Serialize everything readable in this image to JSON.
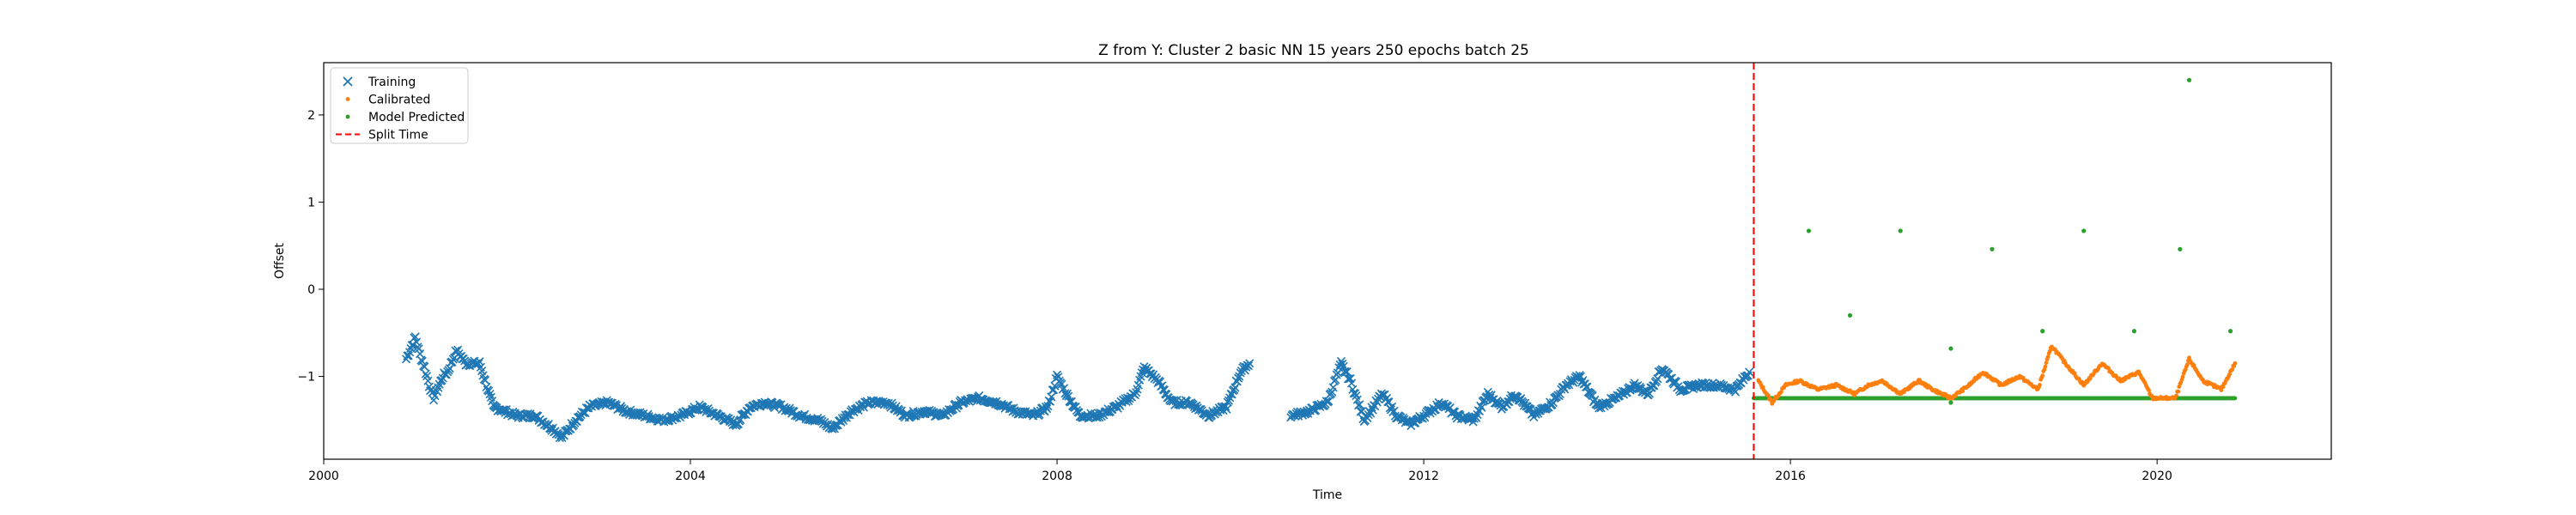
{
  "chart_data": {
    "type": "scatter",
    "title": "Z from Y: Cluster 2 basic NN 15 years 250 epochs batch 25",
    "xlabel": "Time",
    "ylabel": "Offset",
    "xlim": [
      2000.0,
      2021.9
    ],
    "ylim": [
      -1.95,
      2.6
    ],
    "x_ticks": [
      2000,
      2004,
      2008,
      2012,
      2016,
      2020
    ],
    "x_tick_labels": [
      "2000",
      "2004",
      "2008",
      "2012",
      "2016",
      "2020"
    ],
    "y_ticks": [
      -1,
      0,
      1,
      2
    ],
    "y_tick_labels": [
      "−1",
      "0",
      "1",
      "2"
    ],
    "grid": false,
    "legend_position": "top-left",
    "legend": [
      "Training",
      "Calibrated",
      "Model Predicted",
      "Split Time"
    ],
    "split_time": 2015.6,
    "series": [
      {
        "name": "Training",
        "marker": "x",
        "color": "#1f77b4",
        "points": [
          [
            2000.9,
            -0.8
          ],
          [
            2001.0,
            -0.55
          ],
          [
            2001.05,
            -0.75
          ],
          [
            2001.1,
            -0.9
          ],
          [
            2001.15,
            -1.1
          ],
          [
            2001.2,
            -1.25
          ],
          [
            2001.3,
            -1.0
          ],
          [
            2001.35,
            -0.95
          ],
          [
            2001.45,
            -0.7
          ],
          [
            2001.55,
            -0.85
          ],
          [
            2001.7,
            -0.85
          ],
          [
            2001.85,
            -1.35
          ],
          [
            2002.1,
            -1.45
          ],
          [
            2002.3,
            -1.45
          ],
          [
            2002.5,
            -1.6
          ],
          [
            2002.6,
            -1.7
          ],
          [
            2002.75,
            -1.5
          ],
          [
            2002.9,
            -1.35
          ],
          [
            2003.1,
            -1.3
          ],
          [
            2003.3,
            -1.4
          ],
          [
            2003.5,
            -1.45
          ],
          [
            2003.7,
            -1.5
          ],
          [
            2003.9,
            -1.45
          ],
          [
            2004.1,
            -1.35
          ],
          [
            2004.3,
            -1.45
          ],
          [
            2004.5,
            -1.55
          ],
          [
            2004.65,
            -1.35
          ],
          [
            2004.8,
            -1.3
          ],
          [
            2005.0,
            -1.35
          ],
          [
            2005.2,
            -1.45
          ],
          [
            2005.4,
            -1.5
          ],
          [
            2005.55,
            -1.6
          ],
          [
            2005.75,
            -1.4
          ],
          [
            2005.95,
            -1.3
          ],
          [
            2006.15,
            -1.3
          ],
          [
            2006.35,
            -1.45
          ],
          [
            2006.55,
            -1.4
          ],
          [
            2006.75,
            -1.45
          ],
          [
            2006.95,
            -1.3
          ],
          [
            2007.15,
            -1.25
          ],
          [
            2007.35,
            -1.3
          ],
          [
            2007.55,
            -1.4
          ],
          [
            2007.75,
            -1.45
          ],
          [
            2007.9,
            -1.35
          ],
          [
            2008.0,
            -1.0
          ],
          [
            2008.1,
            -1.2
          ],
          [
            2008.25,
            -1.45
          ],
          [
            2008.45,
            -1.45
          ],
          [
            2008.65,
            -1.35
          ],
          [
            2008.85,
            -1.2
          ],
          [
            2008.95,
            -0.9
          ],
          [
            2009.1,
            -1.05
          ],
          [
            2009.25,
            -1.3
          ],
          [
            2009.45,
            -1.3
          ],
          [
            2009.65,
            -1.45
          ],
          [
            2009.85,
            -1.35
          ],
          [
            2010.0,
            -0.95
          ],
          [
            2010.1,
            -0.85
          ],
          [
            2010.55,
            -1.45
          ],
          [
            2010.75,
            -1.4
          ],
          [
            2010.95,
            -1.3
          ],
          [
            2011.1,
            -0.85
          ],
          [
            2011.2,
            -1.05
          ],
          [
            2011.35,
            -1.5
          ],
          [
            2011.55,
            -1.2
          ],
          [
            2011.7,
            -1.45
          ],
          [
            2011.85,
            -1.55
          ],
          [
            2012.0,
            -1.45
          ],
          [
            2012.2,
            -1.3
          ],
          [
            2012.35,
            -1.45
          ],
          [
            2012.55,
            -1.5
          ],
          [
            2012.7,
            -1.2
          ],
          [
            2012.85,
            -1.35
          ],
          [
            2013.0,
            -1.2
          ],
          [
            2013.2,
            -1.45
          ],
          [
            2013.4,
            -1.3
          ],
          [
            2013.55,
            -1.1
          ],
          [
            2013.7,
            -1.0
          ],
          [
            2013.9,
            -1.35
          ],
          [
            2014.1,
            -1.25
          ],
          [
            2014.3,
            -1.1
          ],
          [
            2014.45,
            -1.2
          ],
          [
            2014.6,
            -0.9
          ],
          [
            2014.8,
            -1.15
          ],
          [
            2015.0,
            -1.1
          ],
          [
            2015.2,
            -1.1
          ],
          [
            2015.4,
            -1.15
          ],
          [
            2015.55,
            -0.95
          ]
        ]
      },
      {
        "name": "Calibrated",
        "marker": "dot",
        "color": "#ff7f0e",
        "points": [
          [
            2015.65,
            -1.05
          ],
          [
            2015.8,
            -1.3
          ],
          [
            2015.95,
            -1.1
          ],
          [
            2016.1,
            -1.05
          ],
          [
            2016.3,
            -1.15
          ],
          [
            2016.5,
            -1.1
          ],
          [
            2016.7,
            -1.2
          ],
          [
            2016.85,
            -1.1
          ],
          [
            2017.0,
            -1.05
          ],
          [
            2017.2,
            -1.2
          ],
          [
            2017.4,
            -1.05
          ],
          [
            2017.55,
            -1.15
          ],
          [
            2017.75,
            -1.25
          ],
          [
            2017.95,
            -1.1
          ],
          [
            2018.1,
            -0.95
          ],
          [
            2018.3,
            -1.1
          ],
          [
            2018.5,
            -1.0
          ],
          [
            2018.7,
            -1.15
          ],
          [
            2018.85,
            -0.65
          ],
          [
            2019.0,
            -0.85
          ],
          [
            2019.2,
            -1.1
          ],
          [
            2019.4,
            -0.85
          ],
          [
            2019.6,
            -1.05
          ],
          [
            2019.8,
            -0.95
          ],
          [
            2019.95,
            -1.25
          ],
          [
            2020.2,
            -1.25
          ],
          [
            2020.35,
            -0.8
          ],
          [
            2020.5,
            -1.05
          ],
          [
            2020.7,
            -1.15
          ],
          [
            2020.85,
            -0.85
          ]
        ]
      },
      {
        "name": "Model Predicted",
        "marker": "dot",
        "color": "#2ca02c",
        "baseline": {
          "y": -1.25,
          "x_start": 2015.6,
          "x_end": 2020.85
        },
        "points": [
          [
            2016.2,
            0.67
          ],
          [
            2016.65,
            -0.3
          ],
          [
            2017.2,
            0.67
          ],
          [
            2017.75,
            -0.68
          ],
          [
            2017.75,
            -1.3
          ],
          [
            2018.2,
            0.46
          ],
          [
            2018.75,
            -0.48
          ],
          [
            2019.2,
            0.67
          ],
          [
            2019.75,
            -0.48
          ],
          [
            2020.25,
            0.46
          ],
          [
            2020.35,
            2.4
          ],
          [
            2020.8,
            -0.48
          ]
        ]
      }
    ]
  }
}
